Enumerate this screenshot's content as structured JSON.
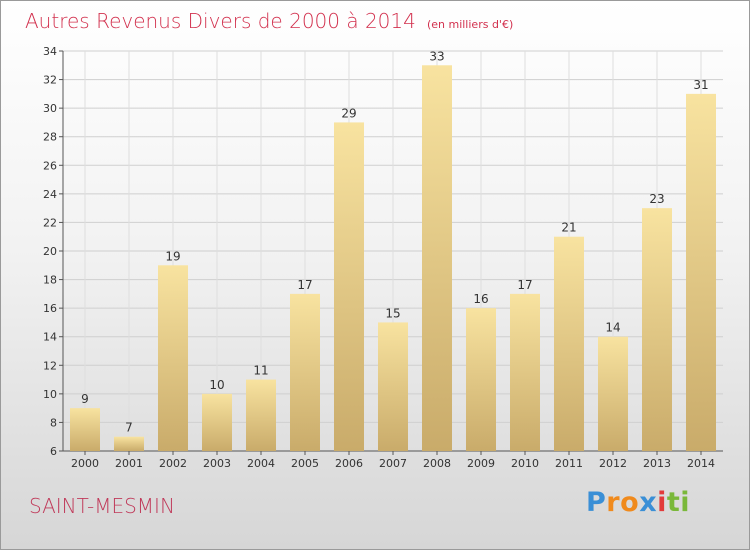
{
  "header": {
    "title": "Autres Revenus Divers de 2000 à 2014",
    "subtitle": "(en milliers d'€)"
  },
  "footer": {
    "commune": "SAINT-MESMIN",
    "logo_letters": [
      "P",
      "r",
      "o",
      "x",
      "i",
      "t",
      "i"
    ]
  },
  "colors": {
    "title": "#d2314e",
    "commune": "#c03a5a",
    "bar_light": "#f8e3a0",
    "bar_dark": "#c9ab6a",
    "logo": [
      "#3a8fd6",
      "#f08a1c",
      "#f08a1c",
      "#3a8fd6",
      "#e23a3a",
      "#7ab83a",
      "#7ab83a"
    ]
  },
  "chart_data": {
    "type": "bar",
    "categories": [
      "2000",
      "2001",
      "2002",
      "2003",
      "2004",
      "2005",
      "2006",
      "2007",
      "2008",
      "2009",
      "2010",
      "2011",
      "2012",
      "2013",
      "2014"
    ],
    "values": [
      9,
      7,
      19,
      10,
      11,
      17,
      29,
      15,
      33,
      16,
      17,
      21,
      14,
      23,
      31
    ],
    "ylim": [
      6,
      34
    ],
    "yticks": [
      6,
      8,
      10,
      12,
      14,
      16,
      18,
      20,
      22,
      24,
      26,
      28,
      30,
      32,
      34
    ],
    "grid": true,
    "data_labels": true
  }
}
